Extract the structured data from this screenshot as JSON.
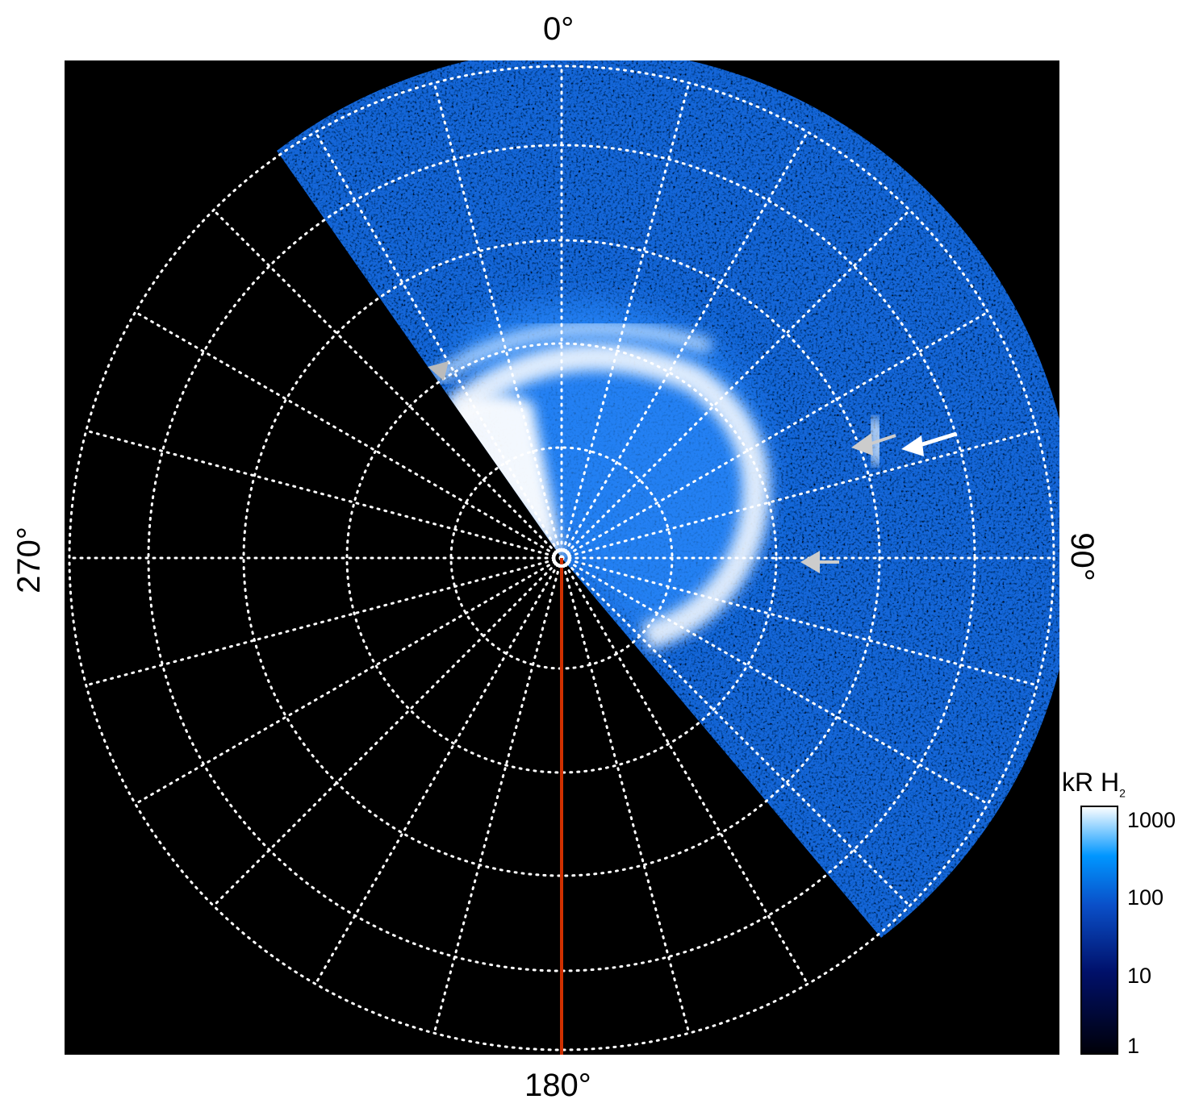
{
  "axis_labels": {
    "top": "0°",
    "right": "90°",
    "bottom": "180°",
    "left": "270°"
  },
  "colorbar": {
    "label_main": "kR H",
    "label_sub": "2",
    "scale": "log",
    "range": [
      1,
      1000
    ],
    "ticks": [
      "1000",
      "100",
      "10",
      "1"
    ],
    "colors": [
      "#000008",
      "#00106a",
      "#0a4fc8",
      "#0096ff",
      "#ffffff"
    ]
  },
  "colors": {
    "background": "#000000",
    "grid": "#ffffff",
    "meridian_line": "#d03000",
    "arrow_gray": "#c8c8c8",
    "arrow_white": "#ffffff"
  }
}
